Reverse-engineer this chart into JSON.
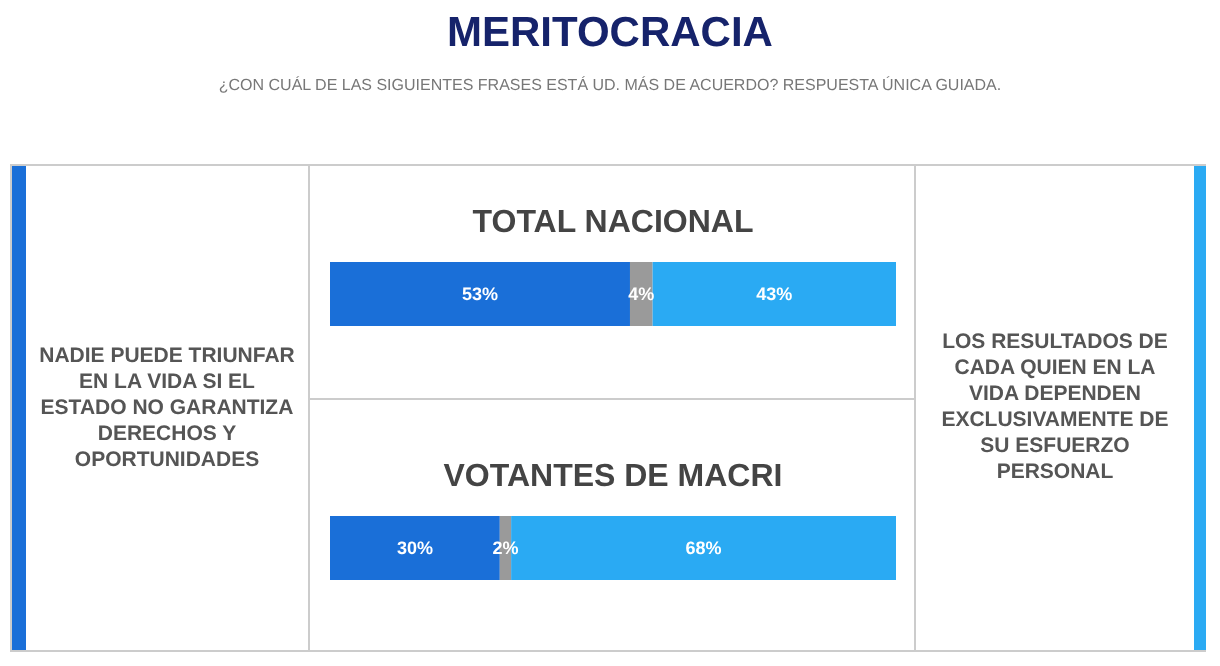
{
  "chart_data": [
    {
      "type": "other",
      "title": "MERITOCRACIA",
      "subtitle": "¿CON CUÁL DE LAS SIGUIENTES FRASES ESTÁ UD. MÁS DE ACUERDO? RESPUESTA ÚNICA GUIADA."
    },
    {
      "type": "other",
      "annotations": [
        "NADIE PUEDE TRIUNFAR EN LA VIDA SI EL ESTADO NO GARANTIZA DERECHOS Y OPORTUNIDADES"
      ]
    },
    {
      "type": "bar",
      "orientation": "horizontal",
      "stacked": true,
      "title": "TOTAL NACIONAL",
      "categories": [
        null
      ],
      "xlim": [
        0,
        100
      ],
      "tick_labels": false,
      "series": [
        {
          "color": "#1a6fd8",
          "values": [
            53
          ],
          "value_labels": [
            "53%"
          ]
        },
        {
          "color": "#9a9a9a",
          "values": [
            4
          ],
          "value_labels": [
            "4%"
          ]
        },
        {
          "color": "#2aaaf3",
          "values": [
            43
          ],
          "value_labels": [
            "43%"
          ]
        }
      ]
    },
    {
      "type": "bar",
      "orientation": "horizontal",
      "stacked": true,
      "title": "VOTANTES DE MACRI",
      "categories": [
        null
      ],
      "xlim": [
        0,
        100
      ],
      "tick_labels": false,
      "series": [
        {
          "color": "#1a6fd8",
          "values": [
            30
          ],
          "value_labels": [
            "30%"
          ]
        },
        {
          "color": "#9a9a9a",
          "values": [
            2
          ],
          "value_labels": [
            "2%"
          ]
        },
        {
          "color": "#2aaaf3",
          "values": [
            68
          ],
          "value_labels": [
            "68%"
          ]
        }
      ]
    },
    {
      "type": "other",
      "annotations": [
        "LOS RESULTADOS DE CADA QUIEN EN LA VIDA DEPENDEN EXCLUSIVAMENTE DE SU ESFUERZO PERSONAL"
      ]
    }
  ]
}
